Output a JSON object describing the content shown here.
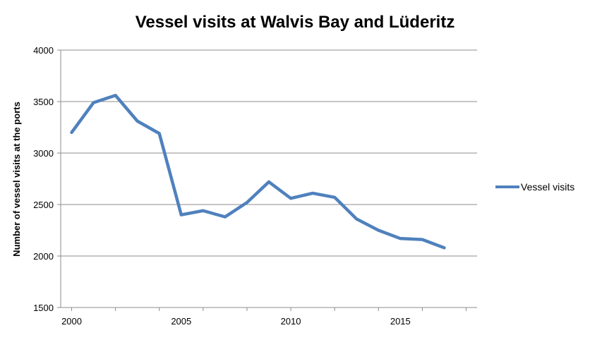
{
  "chart_data": {
    "type": "line",
    "title": "Vessel visits at Walvis Bay and Lüderitz",
    "xlabel": "",
    "ylabel": "Number of vessel visits at the ports",
    "x": [
      2000,
      2001,
      2002,
      2003,
      2004,
      2005,
      2006,
      2007,
      2008,
      2009,
      2010,
      2011,
      2012,
      2013,
      2014,
      2015,
      2016,
      2017
    ],
    "series": [
      {
        "name": "Vessel visits",
        "color": "#4f81bd",
        "values": [
          3200,
          3490,
          3560,
          3310,
          3190,
          2400,
          2440,
          2380,
          2520,
          2720,
          2560,
          2610,
          2570,
          2360,
          2250,
          2170,
          2160,
          2080
        ]
      }
    ],
    "xlim": [
      1999.5,
      2018.5
    ],
    "ylim": [
      1500,
      4000
    ],
    "xticks": [
      "2000",
      "2005",
      "2010",
      "2015"
    ],
    "yticks": [
      "1500",
      "2000",
      "2500",
      "3000",
      "3500",
      "4000"
    ],
    "grid": true,
    "legend_position": "right"
  }
}
